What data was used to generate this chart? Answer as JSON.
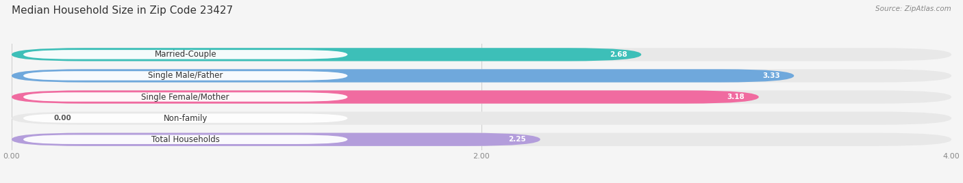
{
  "title": "Median Household Size in Zip Code 23427",
  "source": "Source: ZipAtlas.com",
  "categories": [
    "Married-Couple",
    "Single Male/Father",
    "Single Female/Mother",
    "Non-family",
    "Total Households"
  ],
  "values": [
    2.68,
    3.33,
    3.18,
    0.0,
    2.25
  ],
  "bar_colors": [
    "#3dbfb8",
    "#6fa8dc",
    "#f06ba0",
    "#f9c89a",
    "#b39ddb"
  ],
  "bar_bg_color": "#e8e8e8",
  "xlim": [
    0,
    4.0
  ],
  "xticks": [
    0.0,
    2.0,
    4.0
  ],
  "xtick_labels": [
    "0.00",
    "2.00",
    "4.00"
  ],
  "title_fontsize": 11,
  "source_fontsize": 7.5,
  "label_fontsize": 8.5,
  "value_fontsize": 7.5,
  "background_color": "#f5f5f5"
}
